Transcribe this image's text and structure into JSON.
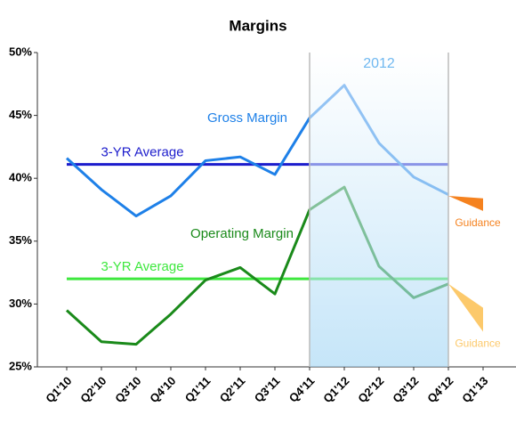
{
  "chart_data": {
    "type": "line",
    "title": "Margins",
    "categories": [
      "Q1'10",
      "Q2'10",
      "Q3'10",
      "Q4'10",
      "Q1'11",
      "Q2'11",
      "Q3'11",
      "Q4'11",
      "Q1'12",
      "Q2'12",
      "Q3'12",
      "Q4'12",
      "Q1'13"
    ],
    "series": [
      {
        "name": "Gross Margin",
        "color": "#1e80e8",
        "values": [
          41.6,
          39.1,
          37.0,
          38.6,
          41.4,
          41.7,
          40.3,
          44.8,
          47.4,
          42.8,
          40.1,
          38.7,
          null
        ]
      },
      {
        "name": "Operating Margin",
        "color": "#1a8a1a",
        "values": [
          29.5,
          27.0,
          26.8,
          29.2,
          31.9,
          32.9,
          30.8,
          37.5,
          39.3,
          33.0,
          30.5,
          31.6,
          null
        ]
      }
    ],
    "averages": [
      {
        "name": "3-YR Average",
        "color": "#1c1ccc",
        "value": 41.1
      },
      {
        "name": "3-YR Average",
        "color": "#3ee83e",
        "value": 32.0
      }
    ],
    "guidance": [
      {
        "name": "Guidance",
        "color": "#f5821f",
        "start": 38.6,
        "high": 38.4,
        "low": 37.4
      },
      {
        "name": "Guidance",
        "color": "#fcc96b",
        "start": 31.6,
        "high": 29.7,
        "low": 27.8
      }
    ],
    "highlight": {
      "label": "2012",
      "from": "Q4'11",
      "to": "Q4'12"
    },
    "ylim": [
      25,
      50
    ],
    "yticks": [
      {
        "value": 25,
        "label": "25%"
      },
      {
        "value": 30,
        "label": "30%"
      },
      {
        "value": 35,
        "label": "35%"
      },
      {
        "value": 40,
        "label": "40%"
      },
      {
        "value": 45,
        "label": "45%"
      },
      {
        "value": 50,
        "label": "50%"
      }
    ]
  }
}
